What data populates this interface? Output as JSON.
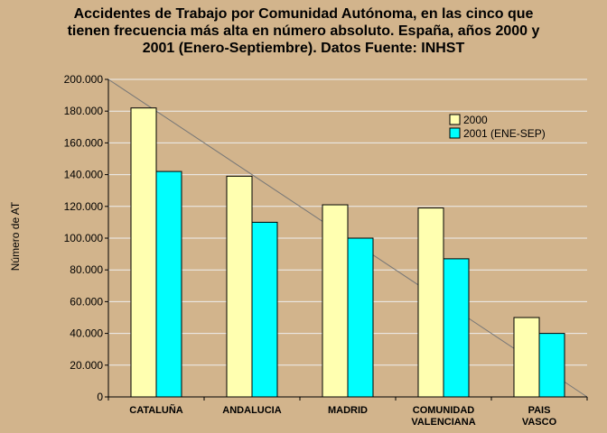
{
  "chart_data": {
    "type": "bar",
    "title": "Accidentes de Trabajo por Comunidad Autónoma, en las cinco que\ntienen frecuencia más alta en número absoluto.  España, años 2000 y\n2001 (Enero-Septiembre).  Datos Fuente: INHST",
    "xlabel": "",
    "ylabel": "Número de AT",
    "ylim": [
      0,
      200000
    ],
    "yticks": [
      0,
      20000,
      40000,
      60000,
      80000,
      100000,
      120000,
      140000,
      160000,
      180000,
      200000
    ],
    "ytick_labels": [
      "0",
      "20.000",
      "40.000",
      "60.000",
      "80.000",
      "100.000",
      "120.000",
      "140.000",
      "160.000",
      "180.000",
      "200.000"
    ],
    "grid": true,
    "legend_position": "top-right",
    "categories": [
      [
        "CATALUÑA"
      ],
      [
        "ANDALUCIA"
      ],
      [
        "MADRID"
      ],
      [
        "COMUNIDAD",
        "VALENCIANA"
      ],
      [
        "PAIS",
        "VASCO"
      ]
    ],
    "series": [
      {
        "name": "2000",
        "color": "#FFFFB0",
        "values": [
          182000,
          139000,
          121000,
          119000,
          50000
        ]
      },
      {
        "name": "2001 (ENE-SEP)",
        "color": "#00FFFF",
        "values": [
          142000,
          110000,
          100000,
          87000,
          40000
        ]
      }
    ],
    "annotations": [
      {
        "type": "trend-line",
        "from": {
          "x": 0,
          "y": 200000
        },
        "to": {
          "x": 5,
          "y": 0
        },
        "color": "#777777"
      }
    ]
  }
}
